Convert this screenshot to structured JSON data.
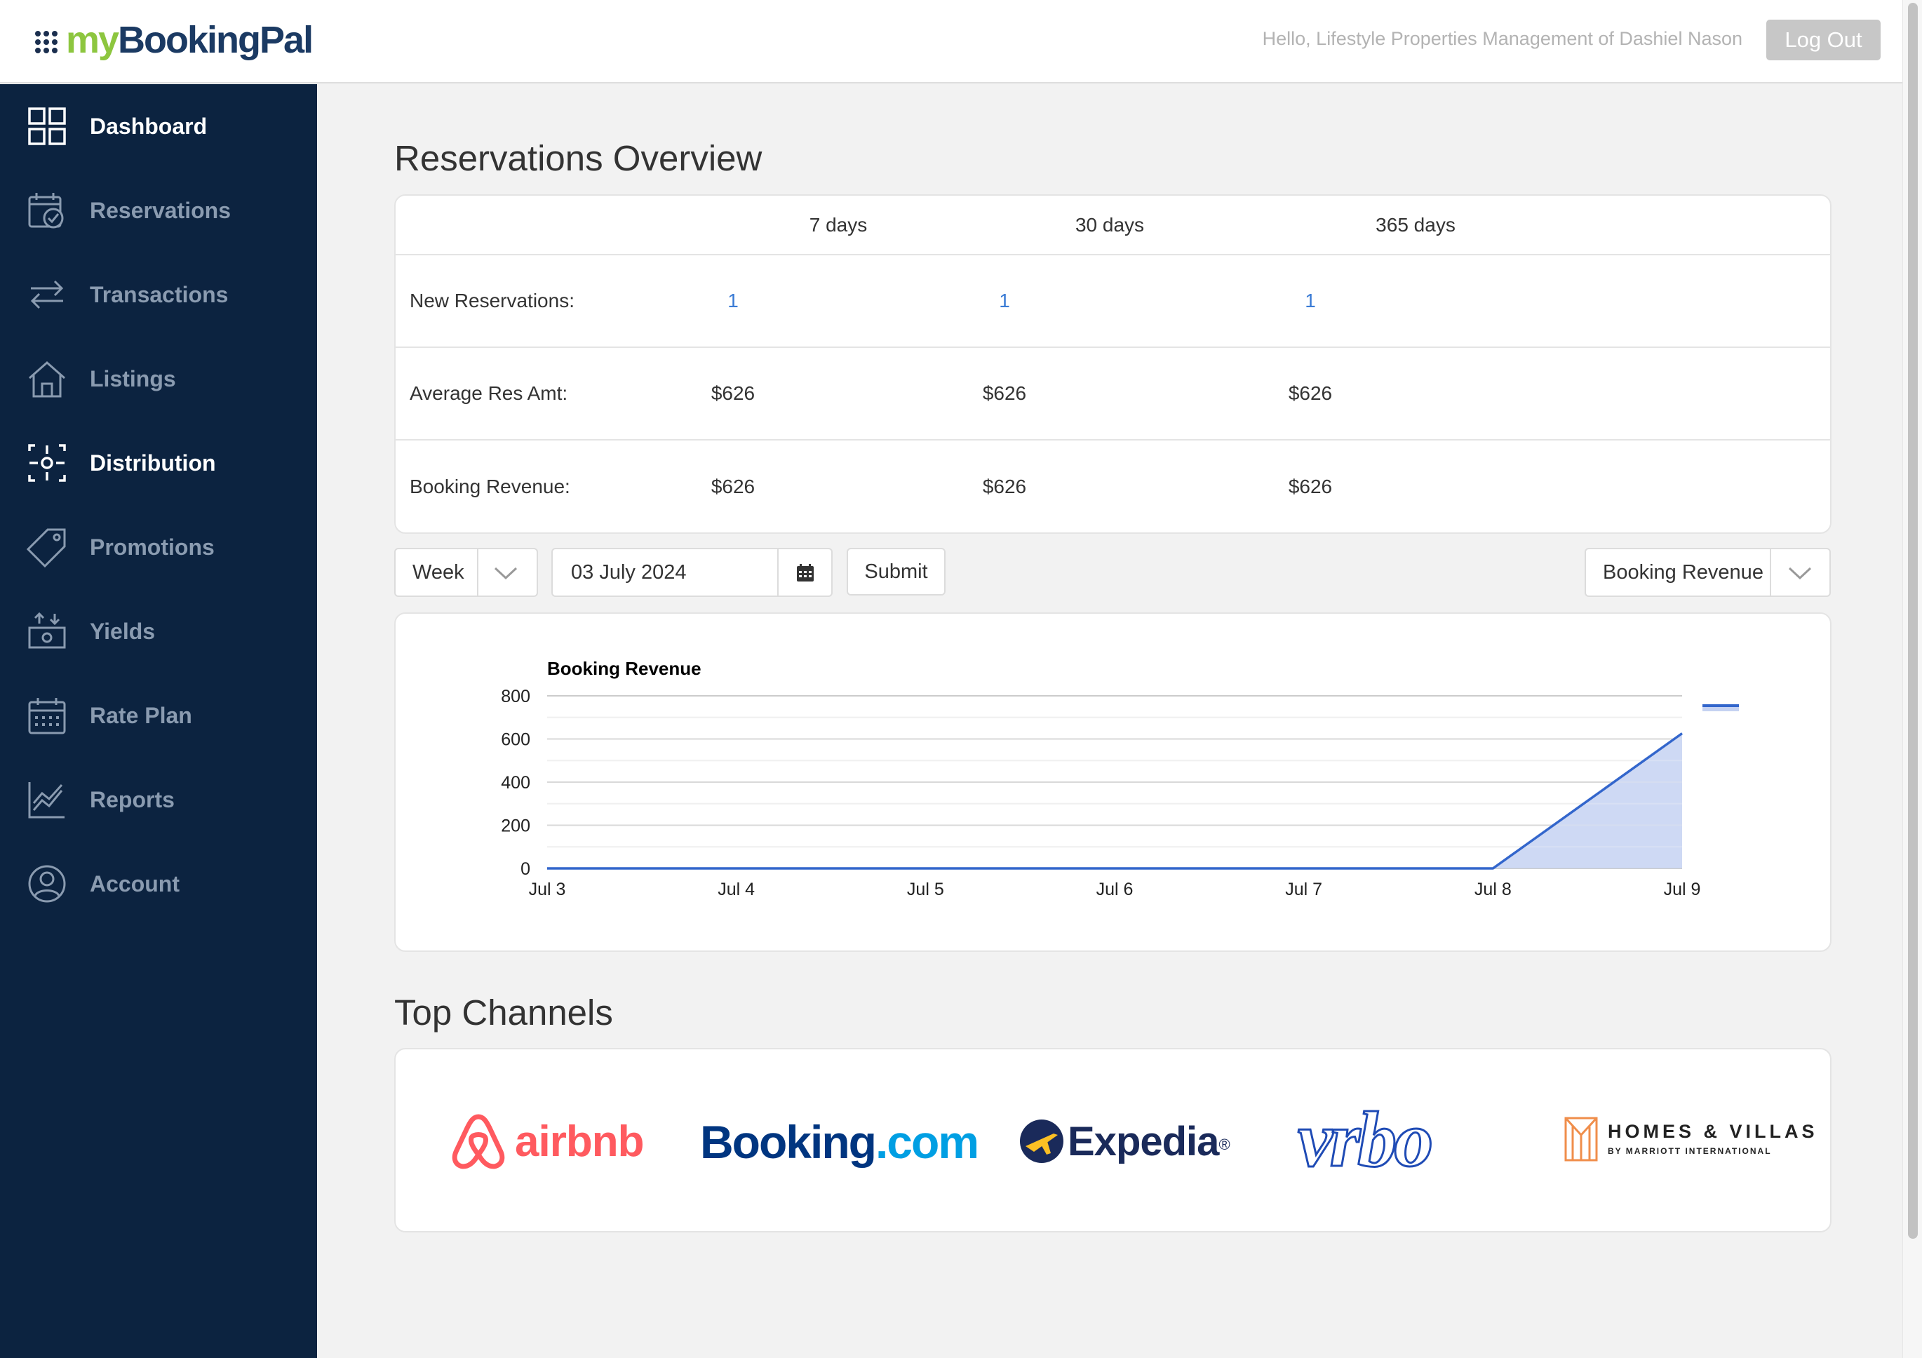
{
  "header": {
    "brand_my": "my",
    "brand_rest": "BookingPal",
    "greeting": "Hello, Lifestyle Properties Management of Dashiel Nason",
    "logout_label": "Log Out"
  },
  "sidebar": {
    "items": [
      {
        "label": "Dashboard",
        "icon": "dashboard-icon"
      },
      {
        "label": "Reservations",
        "icon": "calendar-check-icon"
      },
      {
        "label": "Transactions",
        "icon": "transfer-arrows-icon"
      },
      {
        "label": "Listings",
        "icon": "house-icon"
      },
      {
        "label": "Distribution",
        "icon": "distribution-icon"
      },
      {
        "label": "Promotions",
        "icon": "tag-icon"
      },
      {
        "label": "Yields",
        "icon": "money-icon"
      },
      {
        "label": "Rate Plan",
        "icon": "calendar-grid-icon"
      },
      {
        "label": "Reports",
        "icon": "chart-line-icon"
      },
      {
        "label": "Account",
        "icon": "user-circle-icon"
      }
    ],
    "active": [
      "Dashboard",
      "Distribution"
    ]
  },
  "overview": {
    "title": "Reservations Overview",
    "columns": [
      "7 days",
      "30 days",
      "365 days"
    ],
    "rows": [
      {
        "label": "New Reservations:",
        "values": [
          "1",
          "1",
          "1"
        ]
      },
      {
        "label": "Average Res Amt:",
        "values": [
          "$626",
          "$626",
          "$626"
        ]
      },
      {
        "label": "Booking Revenue:",
        "values": [
          "$626",
          "$626",
          "$626"
        ]
      }
    ]
  },
  "controls": {
    "period": "Week",
    "date": "03 July 2024",
    "submit_label": "Submit",
    "metric": "Booking Revenue"
  },
  "chart_data": {
    "type": "area",
    "title": "Booking Revenue",
    "x": [
      "Jul 3",
      "Jul 4",
      "Jul 5",
      "Jul 6",
      "Jul 7",
      "Jul 8",
      "Jul 9"
    ],
    "y_ticks": [
      "0",
      "200",
      "400",
      "600",
      "800"
    ],
    "series": [
      {
        "values": [
          0,
          0,
          0,
          0,
          0,
          0,
          626
        ]
      }
    ],
    "ylim": [
      0,
      800
    ],
    "grid": true,
    "legend": "right",
    "colors": {
      "line": "#3366cc",
      "fill": "#c5d2f2"
    }
  },
  "channels": {
    "title": "Top Channels",
    "logos": [
      {
        "name": "airbnb",
        "text": "airbnb",
        "color": "#ff5a5f"
      },
      {
        "name": "booking",
        "text": "Booking",
        "suffix": ".com",
        "color": "#003580",
        "suffix_color": "#009fe3"
      },
      {
        "name": "expedia",
        "text": "Expedia",
        "mark": "®",
        "color": "#1a2a5a"
      },
      {
        "name": "vrbo",
        "text": "vrbo",
        "color": "#1f4bb5"
      },
      {
        "name": "homes-villas",
        "text": "HOMES & VILLAS",
        "sub": "BY MARRIOTT INTERNATIONAL",
        "color": "#222",
        "accent": "#f08e4b"
      }
    ]
  }
}
